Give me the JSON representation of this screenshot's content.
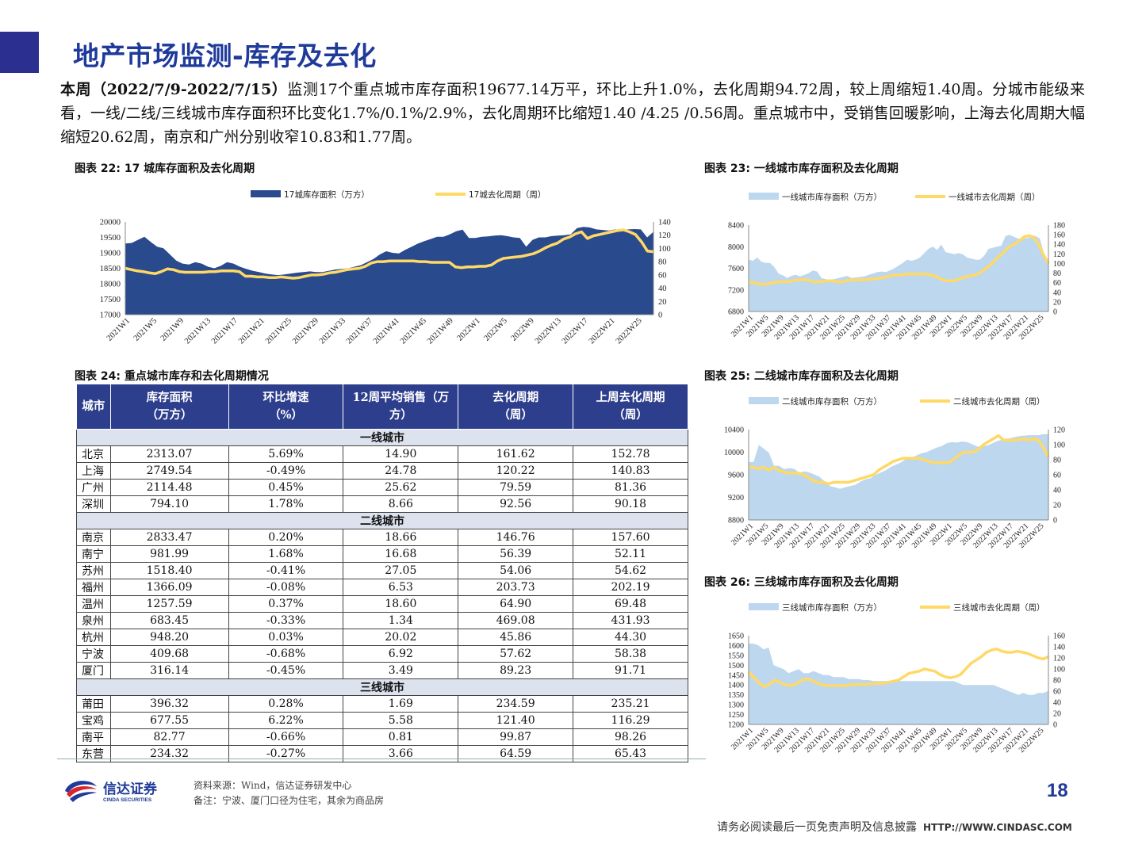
{
  "title": "地产市场监测-库存及去化",
  "summary": {
    "lead": "本周（2022/7/9-2022/7/15）",
    "text": "监测17个重点城市库存面积19677.14万平，环比上升1.0%，去化周期94.72周，较上周缩短1.40周。分城市能级来看，一线/二线/三线城市库存面积环比变化1.7%/0.1%/2.9%，去化周期环比缩短1.40 /4.25 /0.56周。重点城市中，受销售回暖影响，上海去化周期大幅缩短20.62周，南京和广州分别收窄10.83和1.77周。"
  },
  "figures": {
    "fig22": "图表 22:  17 城库存面积及去化周期",
    "fig23": "图表 23:  一线城市库存面积及去化周期",
    "fig24": "图表 24:  重点城市库存和去化周期情况",
    "fig25": "图表 25:  二线城市库存面积及去化周期",
    "fig26": "图表 26:  三线城市库存面积及去化周期"
  },
  "colors": {
    "area_dark": "#2a4a8e",
    "area_light": "#bdd7ee",
    "line": "#ffd966",
    "header": "#2d3e8c",
    "title": "#1f3a9a"
  },
  "chart_data": [
    {
      "id": "fig22",
      "type": "area",
      "title": "17 城库存面积及去化周期",
      "x_ticks": [
        "2021W1",
        "2021W5",
        "2021W9",
        "2021W13",
        "2021W17",
        "2021W21",
        "2021W25",
        "2021W29",
        "2021W33",
        "2021W37",
        "2021W41",
        "2021W45",
        "2021W49",
        "2022W1",
        "2022W5",
        "2022W9",
        "2022W13",
        "2022W17",
        "2022W21",
        "2022W25"
      ],
      "y_left": [
        17000,
        20000
      ],
      "y_left_ticks": [
        17000,
        17500,
        18000,
        18500,
        19000,
        19500,
        20000
      ],
      "y_right": [
        0,
        140
      ],
      "y_right_ticks": [
        0,
        20,
        40,
        60,
        80,
        100,
        120,
        140
      ],
      "series": [
        {
          "name": "17城库存面积（万方）",
          "axis": "left",
          "kind": "area",
          "values": [
            19300,
            19320,
            19420,
            19520,
            19350,
            19200,
            19150,
            18950,
            18750,
            18650,
            18620,
            18700,
            18650,
            18550,
            18500,
            18580,
            18700,
            18650,
            18550,
            18480,
            18420,
            18380,
            18330,
            18300,
            18280,
            18300,
            18330,
            18360,
            18380,
            18400,
            18380,
            18380,
            18420,
            18460,
            18480,
            18500,
            18550,
            18600,
            18700,
            18800,
            18950,
            19050,
            19000,
            18980,
            19100,
            19200,
            19300,
            19380,
            19450,
            19520,
            19520,
            19600,
            19700,
            19750,
            19480,
            19480,
            19520,
            19530,
            19560,
            19570,
            19540,
            19500,
            19480,
            19200,
            19420,
            19500,
            19500,
            19540,
            19560,
            19570,
            19600,
            19800,
            19840,
            19820,
            19760,
            19740,
            19720,
            19760,
            19720,
            19760,
            19770,
            19760,
            19500,
            19680
          ]
        },
        {
          "name": "17城去化周期（周）",
          "axis": "right",
          "kind": "line",
          "values": [
            70,
            68,
            66,
            65,
            63,
            62,
            65,
            69,
            68,
            65,
            64,
            64,
            64,
            64,
            65,
            65,
            66,
            66,
            66,
            65,
            58,
            58,
            57,
            57,
            56,
            56,
            57,
            56,
            55,
            56,
            58,
            60,
            60,
            61,
            63,
            64,
            66,
            68,
            69,
            70,
            73,
            78,
            80,
            80,
            81,
            81,
            81,
            81,
            81,
            80,
            80,
            79,
            79,
            79,
            79,
            72,
            71,
            72,
            72,
            73,
            73,
            75,
            81,
            85,
            86,
            87,
            88,
            90,
            92,
            96,
            101,
            105,
            108,
            114,
            117,
            122,
            125,
            115,
            119,
            121,
            123,
            125,
            127,
            128,
            125,
            121,
            110,
            96,
            95
          ]
        }
      ]
    },
    {
      "id": "fig23",
      "type": "area",
      "title": "一线城市库存面积及去化周期",
      "x_ticks": [
        "2021W1",
        "2021W5",
        "2021W9",
        "2021W13",
        "2021W17",
        "2021W21",
        "2021W25",
        "2021W29",
        "2021W33",
        "2021W37",
        "2021W41",
        "2021W45",
        "2021W49",
        "2022W1",
        "2022W5",
        "2022W9",
        "2022W13",
        "2022W17",
        "2022W21",
        "2022W25"
      ],
      "y_left": [
        6800,
        8400
      ],
      "y_left_ticks": [
        6800,
        7200,
        7600,
        8000,
        8400
      ],
      "y_right": [
        0,
        180
      ],
      "y_right_ticks": [
        0,
        20,
        40,
        60,
        80,
        100,
        120,
        140,
        160,
        180
      ],
      "series": [
        {
          "name": "一线城市库存面积（万方）",
          "axis": "left",
          "kind": "area",
          "values": [
            7760,
            7740,
            7800,
            7720,
            7700,
            7700,
            7620,
            7500,
            7470,
            7420,
            7460,
            7480,
            7450,
            7480,
            7510,
            7560,
            7540,
            7420,
            7400,
            7380,
            7400,
            7420,
            7440,
            7460,
            7420,
            7430,
            7440,
            7450,
            7480,
            7500,
            7530,
            7540,
            7530,
            7560,
            7600,
            7650,
            7700,
            7760,
            7740,
            7760,
            7800,
            7880,
            7960,
            8000,
            7940,
            8040,
            7900,
            7880,
            7860,
            7880,
            7860,
            7800,
            7780,
            7760,
            7760,
            7830,
            7960,
            7980,
            8000,
            8020,
            8200,
            8220,
            8180,
            8150,
            8150,
            8160,
            8180,
            8200,
            8150,
            7860,
            7720
          ]
        },
        {
          "name": "一线城市去化周期（周）",
          "axis": "right",
          "kind": "line",
          "values": [
            62,
            60,
            58,
            56,
            58,
            60,
            62,
            62,
            62,
            64,
            66,
            66,
            66,
            62,
            62,
            62,
            64,
            64,
            62,
            62,
            64,
            66,
            66,
            66,
            66,
            68,
            68,
            70,
            72,
            75,
            76,
            76,
            78,
            78,
            78,
            78,
            78,
            76,
            74,
            68,
            64,
            64,
            64,
            68,
            72,
            74,
            76,
            80,
            88,
            95,
            105,
            115,
            125,
            135,
            140,
            147,
            155,
            158,
            155,
            140,
            118,
            100
          ]
        }
      ]
    },
    {
      "id": "fig25",
      "type": "area",
      "title": "二线城市库存面积及去化周期",
      "x_ticks": [
        "2021W1",
        "2021W5",
        "2021W9",
        "2021W13",
        "2021W17",
        "2021W21",
        "2021W25",
        "2021W29",
        "2021W33",
        "2021W37",
        "2021W41",
        "2021W45",
        "2021W49",
        "2022W1",
        "2022W5",
        "2022W9",
        "2022W13",
        "2022W17",
        "2022W21",
        "2022W25"
      ],
      "y_left": [
        8800,
        10400
      ],
      "y_left_ticks": [
        8800,
        9200,
        9600,
        10000,
        10400
      ],
      "y_right": [
        0,
        120
      ],
      "y_right_ticks": [
        0,
        20,
        40,
        60,
        80,
        100,
        120
      ],
      "series": [
        {
          "name": "二线城市库存面积（万方）",
          "axis": "left",
          "kind": "area",
          "values": [
            9820,
            9830,
            10130,
            10060,
            9990,
            9760,
            9760,
            9700,
            9720,
            9700,
            9640,
            9660,
            9640,
            9600,
            9560,
            9480,
            9400,
            9380,
            9350,
            9380,
            9400,
            9420,
            9480,
            9520,
            9540,
            9600,
            9640,
            9680,
            9740,
            9780,
            9820,
            9880,
            9900,
            9940,
            9980,
            10000,
            10040,
            10080,
            10110,
            10160,
            10180,
            10170,
            10190,
            10180,
            10140,
            10100,
            10110,
            10120,
            10160,
            10200,
            10220,
            10240,
            10260,
            10280,
            10290,
            10300,
            10300,
            10300,
            10320,
            10320
          ]
        },
        {
          "name": "二线城市去化周期（周）",
          "axis": "right",
          "kind": "line",
          "values": [
            70,
            70,
            68,
            70,
            66,
            70,
            66,
            64,
            62,
            62,
            62,
            60,
            56,
            52,
            50,
            50,
            48,
            50,
            50,
            50,
            50,
            52,
            54,
            56,
            58,
            60,
            66,
            70,
            74,
            78,
            80,
            82,
            82,
            82,
            82,
            80,
            78,
            76,
            76,
            76,
            76,
            80,
            86,
            90,
            90,
            90,
            94,
            100,
            104,
            108,
            112,
            106,
            106,
            106,
            106,
            108,
            106,
            108,
            106,
            96,
            84
          ]
        }
      ]
    },
    {
      "id": "fig26",
      "type": "area",
      "title": "三线城市库存面积及去化周期",
      "x_ticks": [
        "2021W1",
        "2021W5",
        "2021W9",
        "2021W13",
        "2021W17",
        "2021W21",
        "2021W25",
        "2021W29",
        "2021W33",
        "2021W37",
        "2021W41",
        "2021W45",
        "2021W49",
        "2022W1",
        "2022W5",
        "2022W9",
        "2022W13",
        "2022W17",
        "2022W21",
        "2022W25"
      ],
      "y_left": [
        1200,
        1650
      ],
      "y_left_ticks": [
        1200,
        1250,
        1300,
        1350,
        1400,
        1450,
        1500,
        1550,
        1600,
        1650
      ],
      "y_right": [
        0,
        160
      ],
      "y_right_ticks": [
        0,
        20,
        40,
        60,
        80,
        100,
        120,
        140,
        160
      ],
      "series": [
        {
          "name": "三线城市库存面积（万方）",
          "axis": "left",
          "kind": "area",
          "values": [
            1610,
            1610,
            1600,
            1580,
            1590,
            1500,
            1490,
            1480,
            1460,
            1470,
            1480,
            1460,
            1460,
            1470,
            1460,
            1450,
            1450,
            1440,
            1440,
            1440,
            1430,
            1430,
            1430,
            1425,
            1425,
            1420,
            1420,
            1420,
            1420,
            1420,
            1420,
            1420,
            1420,
            1420,
            1420,
            1420,
            1420,
            1420,
            1420,
            1420,
            1420,
            1420,
            1410,
            1400,
            1400,
            1400,
            1400,
            1400,
            1400,
            1400,
            1390,
            1380,
            1370,
            1360,
            1350,
            1360,
            1350,
            1350,
            1360,
            1360,
            1370
          ]
        },
        {
          "name": "三线城市去化周期（周）",
          "axis": "right",
          "kind": "line",
          "values": [
            95,
            85,
            75,
            68,
            72,
            80,
            76,
            72,
            70,
            72,
            78,
            82,
            80,
            76,
            72,
            70,
            70,
            70,
            70,
            70,
            72,
            72,
            72,
            72,
            74,
            74,
            74,
            76,
            78,
            80,
            86,
            92,
            94,
            96,
            100,
            98,
            96,
            90,
            86,
            84,
            86,
            90,
            100,
            110,
            116,
            122,
            130,
            134,
            136,
            132,
            130,
            130,
            132,
            130,
            128,
            124,
            120,
            118,
            122
          ]
        }
      ]
    }
  ],
  "table": {
    "headers": [
      {
        "l1": "城市",
        "l2": ""
      },
      {
        "l1": "库存面积",
        "l2": "（万方）"
      },
      {
        "l1": "环比增速",
        "l2": "（%）"
      },
      {
        "l1": "12周平均销售（万",
        "l2": "方）"
      },
      {
        "l1": "去化周期",
        "l2": "（周）"
      },
      {
        "l1": "上周去化周期",
        "l2": "（周）"
      }
    ],
    "groups": [
      {
        "name": "一线城市",
        "rows": [
          [
            "北京",
            "2313.07",
            "5.69%",
            "14.90",
            "161.62",
            "152.78"
          ],
          [
            "上海",
            "2749.54",
            "-0.49%",
            "24.78",
            "120.22",
            "140.83"
          ],
          [
            "广州",
            "2114.48",
            "0.45%",
            "25.62",
            "79.59",
            "81.36"
          ],
          [
            "深圳",
            "794.10",
            "1.78%",
            "8.66",
            "92.56",
            "90.18"
          ]
        ]
      },
      {
        "name": "二线城市",
        "rows": [
          [
            "南京",
            "2833.47",
            "0.20%",
            "18.66",
            "146.76",
            "157.60"
          ],
          [
            "南宁",
            "981.99",
            "1.68%",
            "16.68",
            "56.39",
            "52.11"
          ],
          [
            "苏州",
            "1518.40",
            "-0.41%",
            "27.05",
            "54.06",
            "54.62"
          ],
          [
            "福州",
            "1366.09",
            "-0.08%",
            "6.53",
            "203.73",
            "202.19"
          ],
          [
            "温州",
            "1257.59",
            "0.37%",
            "18.60",
            "64.90",
            "69.48"
          ],
          [
            "泉州",
            "683.45",
            "-0.33%",
            "1.34",
            "469.08",
            "431.93"
          ],
          [
            "杭州",
            "948.20",
            "0.03%",
            "20.02",
            "45.86",
            "44.30"
          ],
          [
            "宁波",
            "409.68",
            "-0.68%",
            "6.92",
            "57.62",
            "58.38"
          ],
          [
            "厦门",
            "316.14",
            "-0.45%",
            "3.49",
            "89.23",
            "91.71"
          ]
        ]
      },
      {
        "name": "三线城市",
        "rows": [
          [
            "莆田",
            "396.32",
            "0.28%",
            "1.69",
            "234.59",
            "235.21"
          ],
          [
            "宝鸡",
            "677.55",
            "6.22%",
            "5.58",
            "121.40",
            "116.29"
          ],
          [
            "南平",
            "82.77",
            "-0.66%",
            "0.81",
            "99.87",
            "98.26"
          ],
          [
            "东营",
            "234.32",
            "-0.27%",
            "3.66",
            "64.59",
            "65.43"
          ]
        ]
      }
    ]
  },
  "footer": {
    "logo_cn": "信达证券",
    "logo_en": "CINDA SECURITIES",
    "source": "资料来源：Wind，信达证券研发中心",
    "note": "备注：宁波、厦门口径为住宅，其余为商品房",
    "page": "18",
    "disclaimer": "请务必阅读最后一页免责声明及信息披露",
    "url": "HTTP://WWW.CINDASC.COM"
  }
}
